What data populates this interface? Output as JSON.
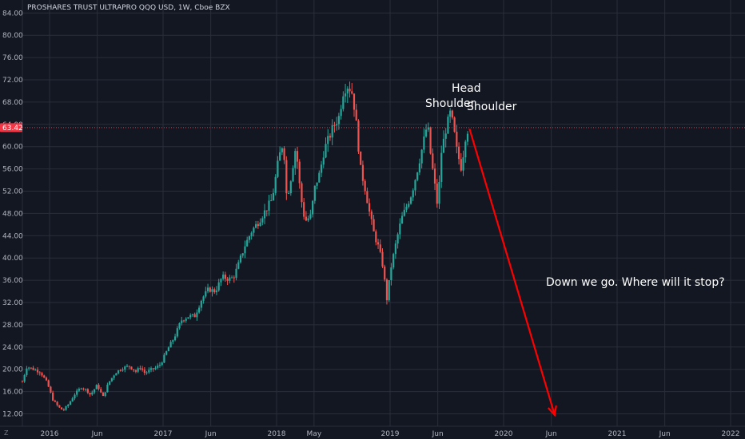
{
  "chart_data": {
    "type": "candlestick",
    "title": "PROSHARES TRUST ULTRAPRO QQQ USD, 1W, Cboe BZX",
    "ylim": [
      12,
      84
    ],
    "y_ticks": [
      "12.00",
      "16.00",
      "20.00",
      "24.00",
      "28.00",
      "32.00",
      "36.00",
      "40.00",
      "44.00",
      "48.00",
      "52.00",
      "56.00",
      "60.00",
      "64.00",
      "68.00",
      "72.00",
      "76.00",
      "80.00",
      "84.00"
    ],
    "x_ticks": [
      {
        "label": "2016",
        "t": 2016.0
      },
      {
        "label": "Jun",
        "t": 2016.42
      },
      {
        "label": "2017",
        "t": 2017.0
      },
      {
        "label": "Jun",
        "t": 2017.42
      },
      {
        "label": "2018",
        "t": 2018.0
      },
      {
        "label": "May",
        "t": 2018.33
      },
      {
        "label": "2019",
        "t": 2019.0
      },
      {
        "label": "Jun",
        "t": 2019.42
      },
      {
        "label": "2020",
        "t": 2020.0
      },
      {
        "label": "Jun",
        "t": 2020.42
      },
      {
        "label": "2021",
        "t": 2021.0
      },
      {
        "label": "Jun",
        "t": 2021.42
      },
      {
        "label": "2022",
        "t": 2022.0
      }
    ],
    "current_price": {
      "label": "63.42",
      "value": 63.42
    },
    "colors": {
      "up": "#26a69a",
      "down": "#ef5350",
      "background": "#131722",
      "grid": "#2a2e39",
      "price_line": "#f23645",
      "arrow": "#ff0000"
    },
    "grid": true,
    "time_range": [
      2015.75,
      2022.05
    ],
    "price_path": [
      [
        2015.76,
        17.8
      ],
      [
        2015.8,
        20.5
      ],
      [
        2015.86,
        20.0
      ],
      [
        2015.92,
        19.5
      ],
      [
        2015.98,
        17.5
      ],
      [
        2016.03,
        14.5
      ],
      [
        2016.08,
        13.2
      ],
      [
        2016.12,
        12.6
      ],
      [
        2016.17,
        13.8
      ],
      [
        2016.22,
        15.5
      ],
      [
        2016.28,
        16.8
      ],
      [
        2016.33,
        16.2
      ],
      [
        2016.36,
        15.4
      ],
      [
        2016.42,
        17.2
      ],
      [
        2016.47,
        15.0
      ],
      [
        2016.52,
        17.6
      ],
      [
        2016.58,
        19.4
      ],
      [
        2016.64,
        20.2
      ],
      [
        2016.7,
        20.6
      ],
      [
        2016.76,
        19.6
      ],
      [
        2016.8,
        20.4
      ],
      [
        2016.84,
        19.3
      ],
      [
        2016.88,
        19.8
      ],
      [
        2016.94,
        20.3
      ],
      [
        2016.98,
        21.0
      ],
      [
        2017.04,
        23.6
      ],
      [
        2017.1,
        25.8
      ],
      [
        2017.16,
        28.8
      ],
      [
        2017.22,
        29.5
      ],
      [
        2017.28,
        29.6
      ],
      [
        2017.34,
        32.6
      ],
      [
        2017.4,
        34.4
      ],
      [
        2017.46,
        34.0
      ],
      [
        2017.52,
        36.6
      ],
      [
        2017.58,
        36.2
      ],
      [
        2017.62,
        36.5
      ],
      [
        2017.66,
        38.6
      ],
      [
        2017.72,
        42.2
      ],
      [
        2017.78,
        44.8
      ],
      [
        2017.84,
        46.5
      ],
      [
        2017.9,
        48.5
      ],
      [
        2017.96,
        50.5
      ],
      [
        2018.02,
        58.0
      ],
      [
        2018.06,
        61.0
      ],
      [
        2018.09,
        50.5
      ],
      [
        2018.13,
        54.8
      ],
      [
        2018.17,
        60.2
      ],
      [
        2018.21,
        51.5
      ],
      [
        2018.25,
        46.6
      ],
      [
        2018.3,
        47.5
      ],
      [
        2018.34,
        53.0
      ],
      [
        2018.38,
        55.2
      ],
      [
        2018.42,
        59.5
      ],
      [
        2018.46,
        61.5
      ],
      [
        2018.5,
        63.6
      ],
      [
        2018.55,
        65.4
      ],
      [
        2018.59,
        70.2
      ],
      [
        2018.63,
        71.0
      ],
      [
        2018.67,
        69.5
      ],
      [
        2018.7,
        64.5
      ],
      [
        2018.74,
        56.0
      ],
      [
        2018.78,
        52.5
      ],
      [
        2018.82,
        48.0
      ],
      [
        2018.86,
        44.2
      ],
      [
        2018.9,
        41.8
      ],
      [
        2018.94,
        38.2
      ],
      [
        2018.97,
        32.4
      ],
      [
        2019.01,
        38.5
      ],
      [
        2019.06,
        43.5
      ],
      [
        2019.1,
        47.0
      ],
      [
        2019.14,
        49.0
      ],
      [
        2019.19,
        51.6
      ],
      [
        2019.24,
        55.8
      ],
      [
        2019.28,
        59.5
      ],
      [
        2019.33,
        64.2
      ],
      [
        2019.36,
        58.0
      ],
      [
        2019.38,
        55.2
      ],
      [
        2019.42,
        49.0
      ],
      [
        2019.45,
        58.8
      ],
      [
        2019.49,
        63.0
      ],
      [
        2019.53,
        66.0
      ],
      [
        2019.56,
        63.5
      ],
      [
        2019.58,
        60.0
      ],
      [
        2019.61,
        57.5
      ],
      [
        2019.63,
        56.0
      ],
      [
        2019.66,
        61.5
      ],
      [
        2019.69,
        63.42
      ]
    ]
  },
  "annotations": {
    "head": "Head",
    "left_shoulder": "Shoulder",
    "right_shoulder": "Shoulder",
    "callout": "Down we go. Where will it stop?"
  },
  "arrow": {
    "start": {
      "t": 2019.7,
      "price": 63.2
    },
    "end": {
      "t": 2020.45,
      "price": 11.8
    }
  }
}
